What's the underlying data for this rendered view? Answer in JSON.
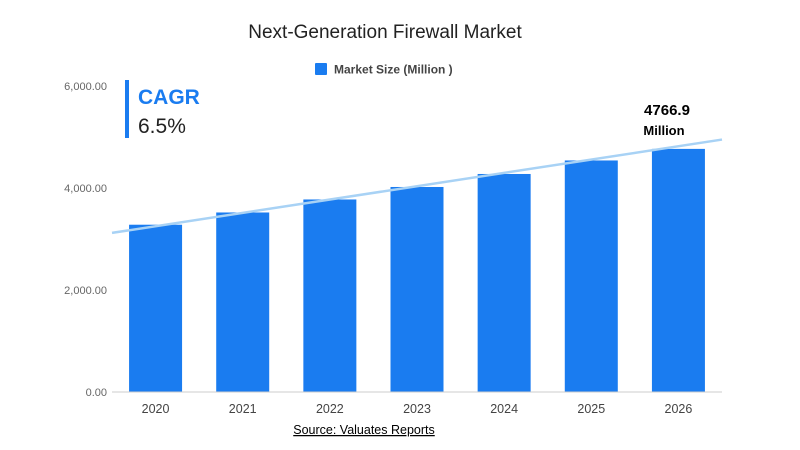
{
  "colors": {
    "bar": "#1a7cf0",
    "trendline": "#a8d2f5",
    "cagr_accent": "#1a7cf0",
    "axis": "#cccccc"
  },
  "chart_data": {
    "type": "bar",
    "title": "Next-Generation Firewall Market",
    "categories": [
      "2020",
      "2021",
      "2022",
      "2023",
      "2024",
      "2025",
      "2026"
    ],
    "series": [
      {
        "name": "Market Size (Million )",
        "values": [
          3280,
          3520,
          3775,
          4020,
          4275,
          4540,
          4766.9
        ]
      }
    ],
    "ylim": [
      0,
      6000
    ],
    "yticks": [
      0,
      2000,
      4000,
      6000
    ],
    "ytick_labels": [
      "0.00",
      "2,000.00",
      "4,000.00",
      "6,000.00"
    ],
    "xlabel": "",
    "ylabel": "",
    "grid": false,
    "legend_position": "top-center",
    "trendline": {
      "x_start_category": "2020",
      "y_start": 3120,
      "y_end": 4950
    },
    "annotations": {
      "cagr_label": "CAGR",
      "cagr_value": "6.5%",
      "last_value_label": "4766.9",
      "last_value_unit": "Million"
    },
    "source": "Source: Valuates Reports"
  }
}
